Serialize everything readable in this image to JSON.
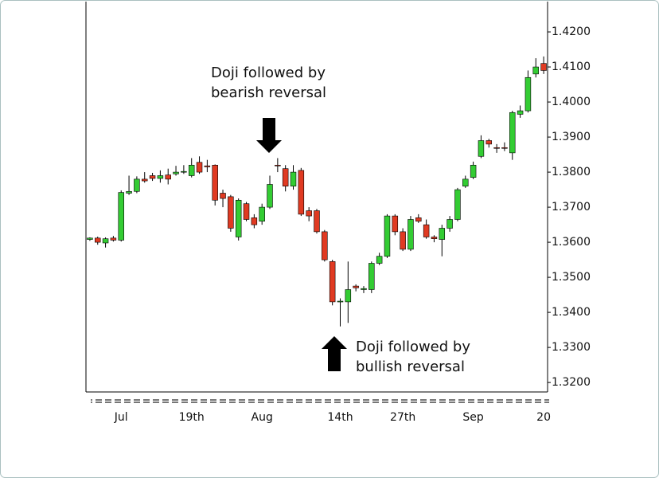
{
  "chart_data": {
    "type": "candlestick",
    "annotations": [
      {
        "lines": [
          "Doji followed by",
          "bearish reversal"
        ]
      },
      {
        "lines": [
          "Doji followed by",
          "bullish reversal"
        ]
      }
    ],
    "categories": [
      null,
      null,
      null,
      null,
      "Jul",
      null,
      null,
      null,
      null,
      null,
      null,
      null,
      null,
      "19th",
      null,
      null,
      null,
      null,
      null,
      null,
      null,
      null,
      "Aug",
      null,
      null,
      null,
      null,
      null,
      null,
      null,
      null,
      null,
      "14th",
      null,
      null,
      null,
      null,
      null,
      null,
      null,
      "27th",
      null,
      null,
      null,
      null,
      null,
      null,
      null,
      null,
      "Sep",
      null,
      null,
      null,
      null,
      null,
      null,
      null,
      null,
      "20"
    ],
    "open": [
      1.3608,
      1.3612,
      1.3598,
      1.3612,
      1.3606,
      1.374,
      1.3745,
      1.378,
      1.379,
      1.3782,
      1.3792,
      1.3795,
      1.38,
      1.379,
      1.3828,
      1.3818,
      1.382,
      1.374,
      1.373,
      1.3615,
      1.371,
      1.367,
      1.366,
      1.37,
      1.382,
      1.381,
      1.376,
      1.3805,
      1.369,
      1.369,
      1.363,
      1.3545,
      1.343,
      1.343,
      1.3475,
      1.3465,
      1.3465,
      1.354,
      1.356,
      1.3675,
      1.363,
      1.358,
      1.367,
      1.365,
      1.3615,
      1.3608,
      1.364,
      1.3665,
      1.376,
      1.3785,
      1.3845,
      1.389,
      1.387,
      1.387,
      1.3855,
      1.3965,
      1.3975,
      1.408,
      1.411
    ],
    "high": [
      1.3614,
      1.3616,
      1.3614,
      1.3618,
      1.3748,
      1.379,
      1.3788,
      1.38,
      1.3798,
      1.3805,
      1.381,
      1.3818,
      1.382,
      1.384,
      1.3845,
      1.3835,
      1.3822,
      1.375,
      1.3735,
      1.3725,
      1.3715,
      1.368,
      1.371,
      1.379,
      1.384,
      1.382,
      1.382,
      1.3812,
      1.37,
      1.3695,
      1.3635,
      1.355,
      1.344,
      1.3545,
      1.348,
      1.3475,
      1.3545,
      1.357,
      1.368,
      1.368,
      1.364,
      1.3675,
      1.368,
      1.3665,
      1.362,
      1.365,
      1.3675,
      1.3755,
      1.379,
      1.383,
      1.3905,
      1.3895,
      1.388,
      1.3885,
      1.3975,
      1.399,
      1.409,
      1.4125,
      1.413
    ],
    "low": [
      1.3604,
      1.3593,
      1.3585,
      1.3602,
      1.3602,
      1.3735,
      1.374,
      1.377,
      1.3775,
      1.377,
      1.3765,
      1.379,
      1.3795,
      1.3785,
      1.3795,
      1.38,
      1.3705,
      1.37,
      1.363,
      1.3605,
      1.366,
      1.364,
      1.365,
      1.3695,
      1.38,
      1.3745,
      1.375,
      1.3675,
      1.366,
      1.3625,
      1.3545,
      1.342,
      1.336,
      1.337,
      1.346,
      1.3455,
      1.3455,
      1.3535,
      1.3555,
      1.362,
      1.3575,
      1.3575,
      1.3655,
      1.361,
      1.36,
      1.356,
      1.363,
      1.366,
      1.3755,
      1.378,
      1.384,
      1.387,
      1.3855,
      1.386,
      1.3835,
      1.3955,
      1.397,
      1.407,
      1.408
    ],
    "close": [
      1.3612,
      1.36,
      1.361,
      1.3606,
      1.3742,
      1.3745,
      1.378,
      1.3775,
      1.3782,
      1.379,
      1.378,
      1.38,
      1.3802,
      1.382,
      1.38,
      1.3815,
      1.372,
      1.3725,
      1.364,
      1.372,
      1.3665,
      1.365,
      1.37,
      1.3765,
      1.3818,
      1.376,
      1.38,
      1.368,
      1.3675,
      1.363,
      1.355,
      1.343,
      1.3432,
      1.3465,
      1.347,
      1.3468,
      1.354,
      1.356,
      1.3675,
      1.363,
      1.358,
      1.3665,
      1.366,
      1.3615,
      1.361,
      1.364,
      1.3665,
      1.375,
      1.378,
      1.382,
      1.389,
      1.388,
      1.3868,
      1.3868,
      1.397,
      1.3975,
      1.407,
      1.41,
      1.409
    ],
    "up_color": "#33cc33",
    "down_color": "#e03a22",
    "ylim": [
      1.3173,
      1.4291
    ],
    "yticks": [
      {
        "value": 1.42,
        "label": "1.4200"
      },
      {
        "value": 1.41,
        "label": "1.4100"
      },
      {
        "value": 1.4,
        "label": "1.4000"
      },
      {
        "value": 1.39,
        "label": "1.3900"
      },
      {
        "value": 1.38,
        "label": "1.3800"
      },
      {
        "value": 1.37,
        "label": "1.3700"
      },
      {
        "value": 1.36,
        "label": "1.3600"
      },
      {
        "value": 1.35,
        "label": "1.3500"
      },
      {
        "value": 1.34,
        "label": "1.3400"
      },
      {
        "value": 1.33,
        "label": "1.3300"
      },
      {
        "value": 1.32,
        "label": "1.3200"
      }
    ]
  }
}
